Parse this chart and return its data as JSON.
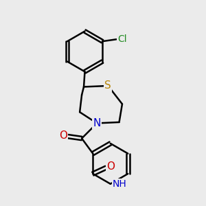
{
  "background_color": "#ebebeb",
  "bond_color": "#000000",
  "bond_width": 1.8,
  "atom_colors": {
    "S": "#b8860b",
    "N": "#0000cc",
    "O": "#cc0000",
    "Cl": "#228b22",
    "H": "#000000",
    "C": "#000000"
  },
  "font_size": 10,
  "figsize": [
    3.0,
    3.0
  ],
  "dpi": 100,
  "xlim": [
    0,
    10
  ],
  "ylim": [
    0,
    10
  ]
}
